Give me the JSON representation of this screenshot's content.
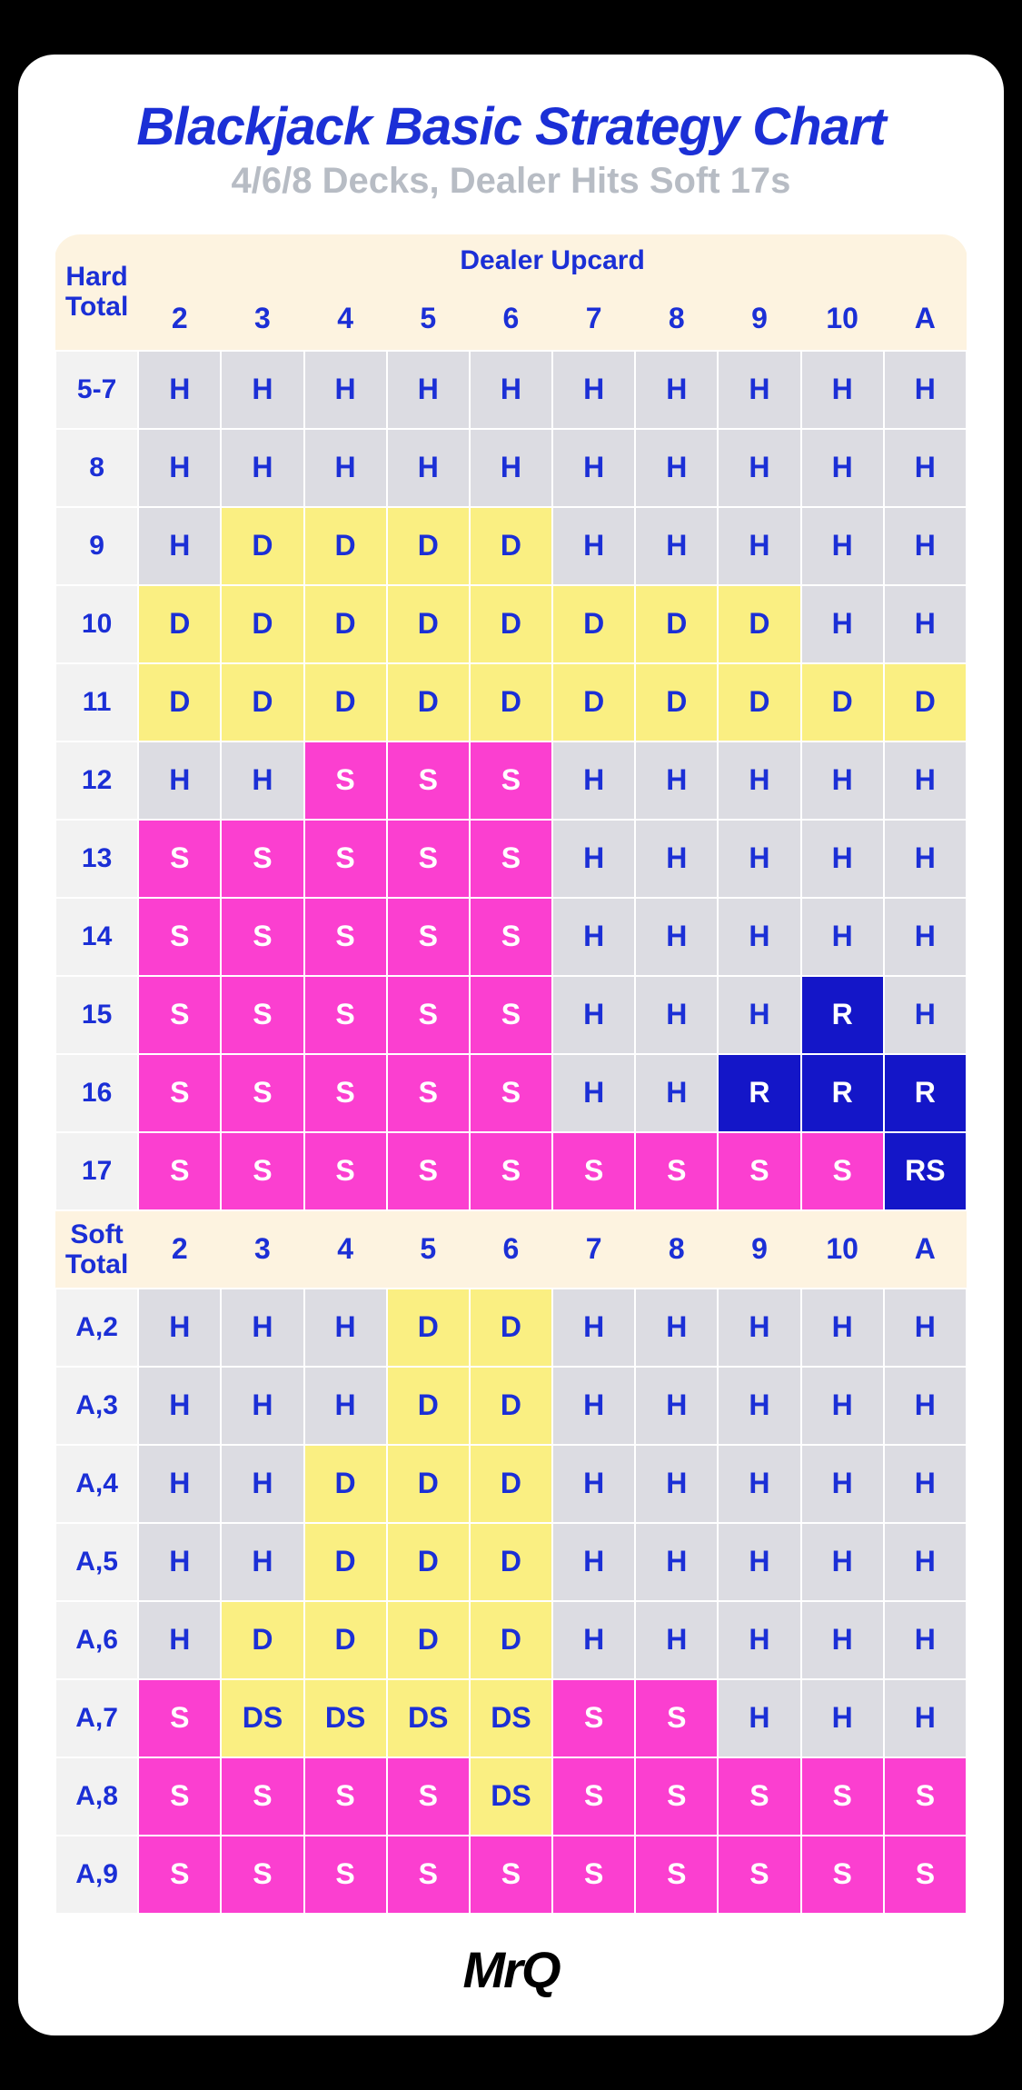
{
  "title": "Blackjack Basic Strategy Chart",
  "subtitle": "4/6/8 Decks, Dealer Hits Soft 17s",
  "title_fontsize": 58,
  "subtitle_fontsize": 40,
  "title_color": "#1b2fd6",
  "subtitle_color": "#b7bcc4",
  "header_bg": "#fdf3e0",
  "header_text_color": "#1b2fd6",
  "rowlabel_bg": "#f2f2f2",
  "rowlabel_text_color": "#1b2fd6",
  "cell_fontsize": 32,
  "rowlabel_fontsize": 30,
  "header_fontsize": 32,
  "dealer_label": "Dealer Upcard",
  "dealer_columns": [
    "2",
    "3",
    "4",
    "5",
    "6",
    "7",
    "8",
    "9",
    "10",
    "A"
  ],
  "legend": {
    "H": {
      "bg": "#dcdce2",
      "fg": "#1b2fd6"
    },
    "D": {
      "bg": "#faef82",
      "fg": "#1b2fd6"
    },
    "S": {
      "bg": "#fb3fd0",
      "fg": "#ffffff"
    },
    "R": {
      "bg": "#1416c8",
      "fg": "#ffffff"
    },
    "RS": {
      "bg": "#1416c8",
      "fg": "#ffffff"
    },
    "DS": {
      "bg": "#faef82",
      "fg": "#1b2fd6"
    }
  },
  "sections": [
    {
      "label": "Hard\nTotal",
      "rows": [
        {
          "label": "5-7",
          "cells": [
            "H",
            "H",
            "H",
            "H",
            "H",
            "H",
            "H",
            "H",
            "H",
            "H"
          ]
        },
        {
          "label": "8",
          "cells": [
            "H",
            "H",
            "H",
            "H",
            "H",
            "H",
            "H",
            "H",
            "H",
            "H"
          ]
        },
        {
          "label": "9",
          "cells": [
            "H",
            "D",
            "D",
            "D",
            "D",
            "H",
            "H",
            "H",
            "H",
            "H"
          ]
        },
        {
          "label": "10",
          "cells": [
            "D",
            "D",
            "D",
            "D",
            "D",
            "D",
            "D",
            "D",
            "H",
            "H"
          ]
        },
        {
          "label": "11",
          "cells": [
            "D",
            "D",
            "D",
            "D",
            "D",
            "D",
            "D",
            "D",
            "D",
            "D"
          ]
        },
        {
          "label": "12",
          "cells": [
            "H",
            "H",
            "S",
            "S",
            "S",
            "H",
            "H",
            "H",
            "H",
            "H"
          ]
        },
        {
          "label": "13",
          "cells": [
            "S",
            "S",
            "S",
            "S",
            "S",
            "H",
            "H",
            "H",
            "H",
            "H"
          ]
        },
        {
          "label": "14",
          "cells": [
            "S",
            "S",
            "S",
            "S",
            "S",
            "H",
            "H",
            "H",
            "H",
            "H"
          ]
        },
        {
          "label": "15",
          "cells": [
            "S",
            "S",
            "S",
            "S",
            "S",
            "H",
            "H",
            "H",
            "R",
            "H"
          ]
        },
        {
          "label": "16",
          "cells": [
            "S",
            "S",
            "S",
            "S",
            "S",
            "H",
            "H",
            "R",
            "R",
            "R"
          ]
        },
        {
          "label": "17",
          "cells": [
            "S",
            "S",
            "S",
            "S",
            "S",
            "S",
            "S",
            "S",
            "S",
            "RS"
          ]
        }
      ]
    },
    {
      "label": "Soft\nTotal",
      "rows": [
        {
          "label": "A,2",
          "cells": [
            "H",
            "H",
            "H",
            "D",
            "D",
            "H",
            "H",
            "H",
            "H",
            "H"
          ]
        },
        {
          "label": "A,3",
          "cells": [
            "H",
            "H",
            "H",
            "D",
            "D",
            "H",
            "H",
            "H",
            "H",
            "H"
          ]
        },
        {
          "label": "A,4",
          "cells": [
            "H",
            "H",
            "D",
            "D",
            "D",
            "H",
            "H",
            "H",
            "H",
            "H"
          ]
        },
        {
          "label": "A,5",
          "cells": [
            "H",
            "H",
            "D",
            "D",
            "D",
            "H",
            "H",
            "H",
            "H",
            "H"
          ]
        },
        {
          "label": "A,6",
          "cells": [
            "H",
            "D",
            "D",
            "D",
            "D",
            "H",
            "H",
            "H",
            "H",
            "H"
          ]
        },
        {
          "label": "A,7",
          "cells": [
            "S",
            "DS",
            "DS",
            "DS",
            "DS",
            "S",
            "S",
            "H",
            "H",
            "H"
          ]
        },
        {
          "label": "A,8",
          "cells": [
            "S",
            "S",
            "S",
            "S",
            "DS",
            "S",
            "S",
            "S",
            "S",
            "S"
          ]
        },
        {
          "label": "A,9",
          "cells": [
            "S",
            "S",
            "S",
            "S",
            "S",
            "S",
            "S",
            "S",
            "S",
            "S"
          ]
        }
      ]
    }
  ],
  "logo_parts": [
    "Mr",
    "Q"
  ],
  "logo_color": "#000000"
}
